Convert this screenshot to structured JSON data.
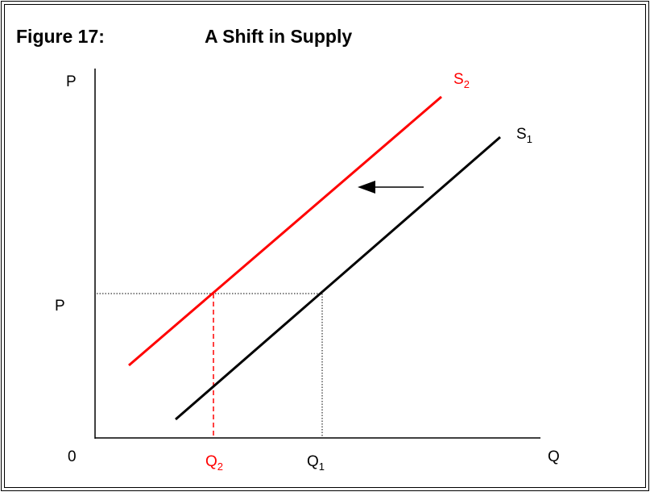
{
  "title": {
    "label": "Figure 17:",
    "text": "A Shift in Supply"
  },
  "axes": {
    "y_label": "P",
    "x_label": "Q",
    "origin": "0",
    "price_label": "P"
  },
  "curves": [
    {
      "name": {
        "main": "S",
        "sub": "2"
      },
      "color": "#ff0000"
    },
    {
      "name": {
        "main": "S",
        "sub": "1"
      },
      "color": "#000000"
    }
  ],
  "quantities": [
    {
      "main": "Q",
      "sub": "2",
      "color": "#ff0000"
    },
    {
      "main": "Q",
      "sub": "1",
      "color": "#000000"
    }
  ]
}
